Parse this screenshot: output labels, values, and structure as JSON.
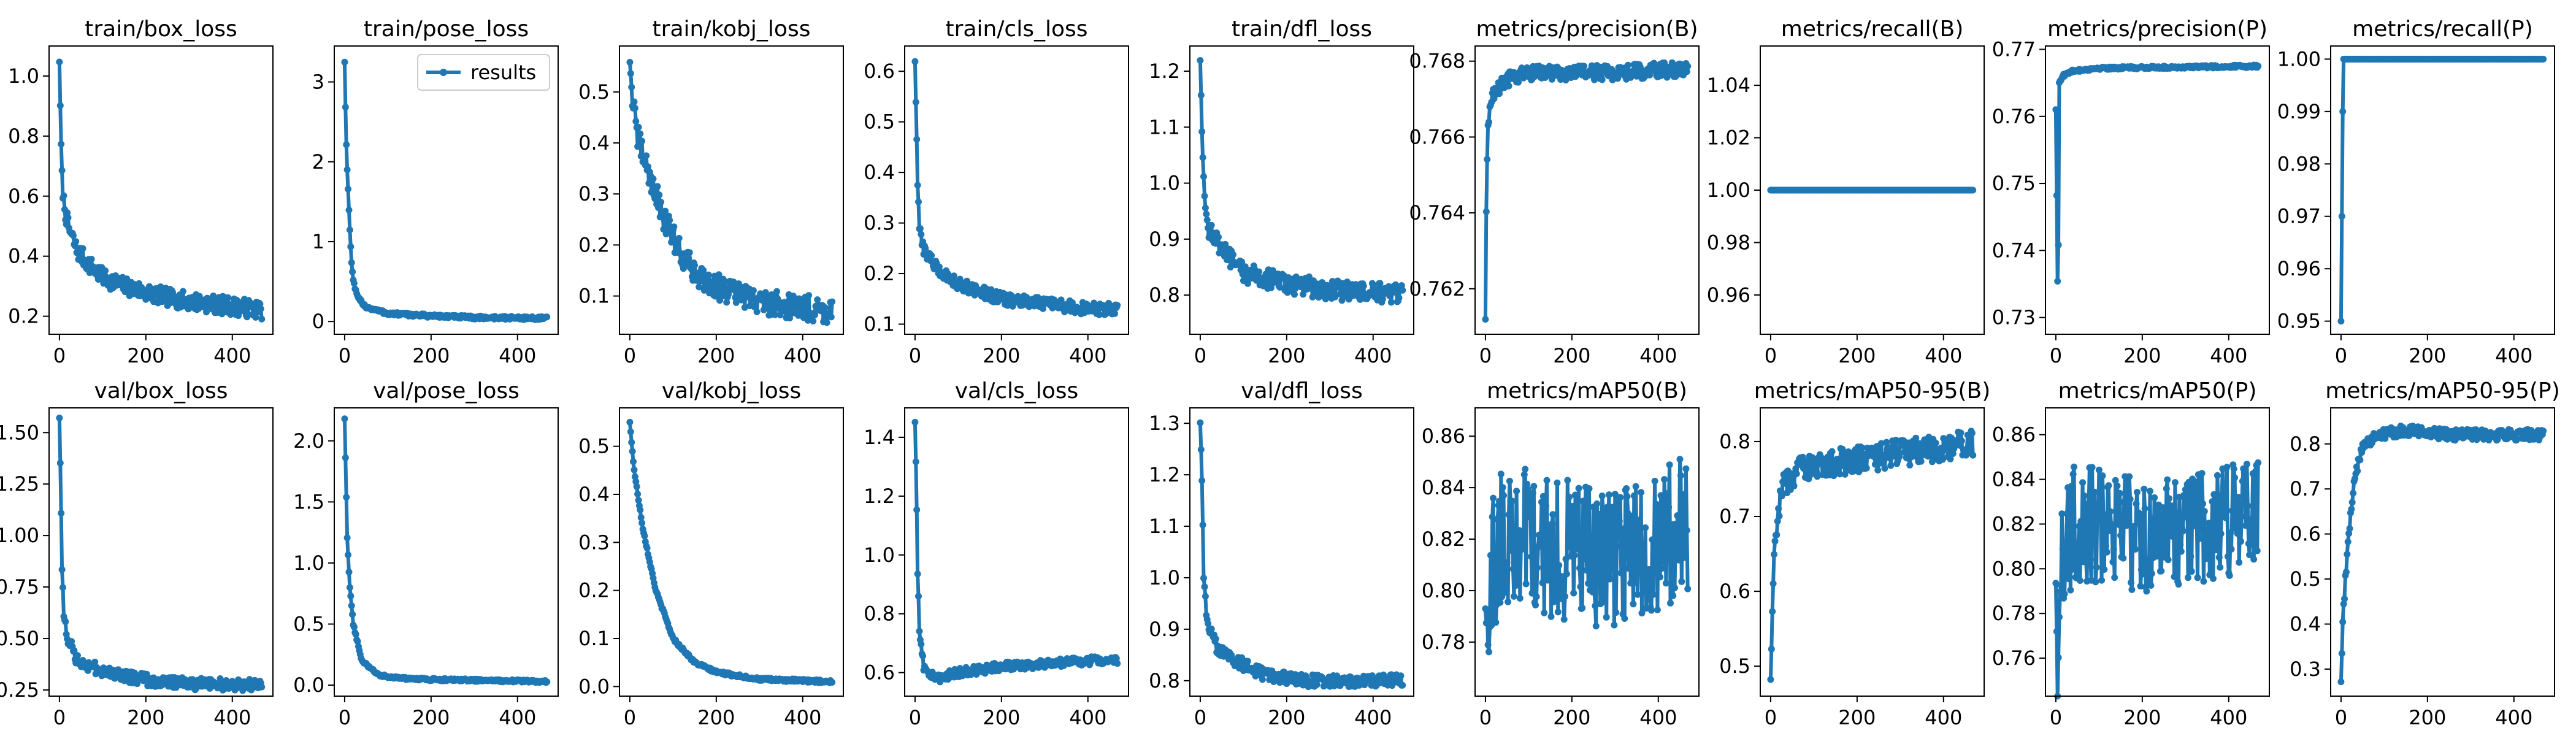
{
  "chart_data": [
    {
      "type": "line",
      "title": "train/box_loss",
      "xticks": [
        "0",
        "200",
        "400"
      ],
      "xlim": [
        -24,
        494
      ],
      "yticks": [
        "0.2",
        "0.4",
        "0.6",
        "0.8",
        "1.0"
      ],
      "ylim": [
        0.14,
        1.1
      ],
      "series": [
        {
          "name": "results",
          "kp": [
            [
              0,
              1.05
            ],
            [
              3,
              0.82
            ],
            [
              6,
              0.66
            ],
            [
              10,
              0.58
            ],
            [
              20,
              0.5
            ],
            [
              40,
              0.42
            ],
            [
              70,
              0.37
            ],
            [
              100,
              0.33
            ],
            [
              150,
              0.3
            ],
            [
              200,
              0.28
            ],
            [
              260,
              0.26
            ],
            [
              300,
              0.25
            ],
            [
              360,
              0.24
            ],
            [
              420,
              0.23
            ],
            [
              470,
              0.22
            ]
          ],
          "noise": 0.03
        }
      ]
    },
    {
      "type": "line",
      "title": "train/pose_loss",
      "xticks": [
        "0",
        "200",
        "400"
      ],
      "xlim": [
        -24,
        494
      ],
      "yticks": [
        "0",
        "1",
        "2",
        "3"
      ],
      "ylim": [
        -0.16,
        3.45
      ],
      "legend": {
        "label": "results",
        "position": "upper right"
      },
      "series": [
        {
          "name": "results",
          "kp": [
            [
              0,
              3.25
            ],
            [
              3,
              2.4
            ],
            [
              6,
              1.9
            ],
            [
              10,
              1.4
            ],
            [
              15,
              0.8
            ],
            [
              20,
              0.5
            ],
            [
              30,
              0.3
            ],
            [
              50,
              0.18
            ],
            [
              100,
              0.1
            ],
            [
              200,
              0.07
            ],
            [
              300,
              0.05
            ],
            [
              470,
              0.04
            ]
          ],
          "noise": 0.02
        }
      ]
    },
    {
      "type": "line",
      "title": "train/kobj_loss",
      "xticks": [
        "0",
        "200",
        "400"
      ],
      "xlim": [
        -24,
        494
      ],
      "yticks": [
        "0.1",
        "0.2",
        "0.3",
        "0.4",
        "0.5"
      ],
      "ylim": [
        0.025,
        0.59
      ],
      "series": [
        {
          "name": "results",
          "kp": [
            [
              0,
              0.56
            ],
            [
              5,
              0.5
            ],
            [
              15,
              0.42
            ],
            [
              40,
              0.35
            ],
            [
              80,
              0.25
            ],
            [
              120,
              0.18
            ],
            [
              160,
              0.14
            ],
            [
              220,
              0.11
            ],
            [
              300,
              0.09
            ],
            [
              380,
              0.08
            ],
            [
              470,
              0.07
            ]
          ],
          "noise": 0.025
        }
      ]
    },
    {
      "type": "line",
      "title": "train/cls_loss",
      "xticks": [
        "0",
        "200",
        "400"
      ],
      "xlim": [
        -24,
        494
      ],
      "yticks": [
        "0.1",
        "0.2",
        "0.3",
        "0.4",
        "0.5",
        "0.6"
      ],
      "ylim": [
        0.08,
        0.65
      ],
      "series": [
        {
          "name": "results",
          "kp": [
            [
              0,
              0.62
            ],
            [
              3,
              0.5
            ],
            [
              6,
              0.37
            ],
            [
              10,
              0.29
            ],
            [
              20,
              0.25
            ],
            [
              50,
              0.21
            ],
            [
              100,
              0.18
            ],
            [
              200,
              0.15
            ],
            [
              300,
              0.14
            ],
            [
              400,
              0.13
            ],
            [
              470,
              0.13
            ]
          ],
          "noise": 0.012
        }
      ]
    },
    {
      "type": "line",
      "title": "train/dfl_loss",
      "xticks": [
        "0",
        "200",
        "400"
      ],
      "xlim": [
        -24,
        494
      ],
      "yticks": [
        "0.8",
        "0.9",
        "1.0",
        "1.1",
        "1.2"
      ],
      "ylim": [
        0.73,
        1.245
      ],
      "series": [
        {
          "name": "results",
          "kp": [
            [
              0,
              1.22
            ],
            [
              4,
              1.1
            ],
            [
              10,
              0.96
            ],
            [
              20,
              0.92
            ],
            [
              50,
              0.88
            ],
            [
              100,
              0.84
            ],
            [
              200,
              0.82
            ],
            [
              300,
              0.81
            ],
            [
              470,
              0.8
            ]
          ],
          "noise": 0.018
        }
      ]
    },
    {
      "type": "line",
      "title": "metrics/precision(B)",
      "xticks": [
        "0",
        "200",
        "400"
      ],
      "xlim": [
        -24,
        494
      ],
      "yticks": [
        "0.762",
        "0.764",
        "0.766",
        "0.768"
      ],
      "ylim": [
        0.7608,
        0.7684
      ],
      "series": [
        {
          "name": "results",
          "kp": [
            [
              0,
              0.7612
            ],
            [
              2,
              0.764
            ],
            [
              5,
              0.766
            ],
            [
              10,
              0.7668
            ],
            [
              20,
              0.7672
            ],
            [
              60,
              0.7676
            ],
            [
              100,
              0.7677
            ],
            [
              200,
              0.7677
            ],
            [
              300,
              0.7677
            ],
            [
              470,
              0.7678
            ]
          ],
          "noise": 0.0002
        }
      ]
    },
    {
      "type": "line",
      "title": "metrics/recall(B)",
      "xticks": [
        "0",
        "200",
        "400"
      ],
      "xlim": [
        -24,
        494
      ],
      "yticks": [
        "0.96",
        "0.98",
        "1.00",
        "1.02",
        "1.04"
      ],
      "ylim": [
        0.945,
        1.055
      ],
      "series": [
        {
          "name": "results",
          "kp": [
            [
              0,
              1.0
            ],
            [
              470,
              1.0
            ]
          ],
          "noise": 0
        }
      ]
    },
    {
      "type": "line",
      "title": "metrics/precision(P)",
      "xticks": [
        "0",
        "200",
        "400"
      ],
      "xlim": [
        -24,
        494
      ],
      "yticks": [
        "0.73",
        "0.74",
        "0.75",
        "0.76",
        "0.77"
      ],
      "ylim": [
        0.7275,
        0.7705
      ],
      "series": [
        {
          "name": "results",
          "kp": [
            [
              0,
              0.761
            ],
            [
              5,
              0.729
            ],
            [
              8,
              0.765
            ],
            [
              15,
              0.766
            ],
            [
              40,
              0.7668
            ],
            [
              100,
              0.7672
            ],
            [
              470,
              0.7675
            ]
          ],
          "noise": 0.0002
        }
      ]
    },
    {
      "type": "line",
      "title": "metrics/recall(P)",
      "xticks": [
        "0",
        "200",
        "400"
      ],
      "xlim": [
        -24,
        494
      ],
      "yticks": [
        "0.95",
        "0.96",
        "0.97",
        "0.98",
        "0.99",
        "1.00"
      ],
      "ylim": [
        0.9475,
        1.0025
      ],
      "series": [
        {
          "name": "results",
          "kp": [
            [
              0,
              0.95
            ],
            [
              5,
              1.0
            ],
            [
              470,
              1.0
            ]
          ],
          "noise": 0
        }
      ]
    },
    {
      "type": "line",
      "title": "val/box_loss",
      "xticks": [
        "0",
        "200",
        "400"
      ],
      "xlim": [
        -24,
        494
      ],
      "yticks": [
        "0.25",
        "0.50",
        "0.75",
        "1.00",
        "1.25",
        "1.50"
      ],
      "ylim": [
        0.22,
        1.62
      ],
      "series": [
        {
          "name": "results",
          "kp": [
            [
              0,
              1.57
            ],
            [
              3,
              1.25
            ],
            [
              6,
              0.85
            ],
            [
              10,
              0.6
            ],
            [
              20,
              0.5
            ],
            [
              40,
              0.4
            ],
            [
              100,
              0.34
            ],
            [
              200,
              0.3
            ],
            [
              300,
              0.28
            ],
            [
              470,
              0.27
            ]
          ],
          "noise": 0.03
        }
      ]
    },
    {
      "type": "line",
      "title": "val/pose_loss",
      "xticks": [
        "0",
        "200",
        "400"
      ],
      "xlim": [
        -24,
        494
      ],
      "yticks": [
        "0.0",
        "0.5",
        "1.0",
        "1.5",
        "2.0"
      ],
      "ylim": [
        -0.09,
        2.27
      ],
      "series": [
        {
          "name": "results",
          "kp": [
            [
              0,
              2.18
            ],
            [
              3,
              1.7
            ],
            [
              6,
              1.2
            ],
            [
              12,
              0.8
            ],
            [
              20,
              0.5
            ],
            [
              40,
              0.2
            ],
            [
              80,
              0.08
            ],
            [
              150,
              0.05
            ],
            [
              300,
              0.04
            ],
            [
              470,
              0.03
            ]
          ],
          "noise": 0.01
        }
      ]
    },
    {
      "type": "line",
      "title": "val/kobj_loss",
      "xticks": [
        "0",
        "200",
        "400"
      ],
      "xlim": [
        -24,
        494
      ],
      "yticks": [
        "0.0",
        "0.1",
        "0.2",
        "0.3",
        "0.4",
        "0.5"
      ],
      "ylim": [
        -0.02,
        0.58
      ],
      "series": [
        {
          "name": "results",
          "kp": [
            [
              0,
              0.55
            ],
            [
              10,
              0.45
            ],
            [
              30,
              0.33
            ],
            [
              60,
              0.2
            ],
            [
              100,
              0.1
            ],
            [
              150,
              0.05
            ],
            [
              200,
              0.03
            ],
            [
              300,
              0.015
            ],
            [
              470,
              0.01
            ]
          ],
          "noise": 0.003
        }
      ]
    },
    {
      "type": "line",
      "title": "val/cls_loss",
      "xticks": [
        "0",
        "200",
        "400"
      ],
      "xlim": [
        -24,
        494
      ],
      "yticks": [
        "0.6",
        "0.8",
        "1.0",
        "1.2",
        "1.4"
      ],
      "ylim": [
        0.52,
        1.5
      ],
      "series": [
        {
          "name": "results",
          "kp": [
            [
              0,
              1.45
            ],
            [
              3,
              1.25
            ],
            [
              6,
              0.95
            ],
            [
              10,
              0.75
            ],
            [
              20,
              0.62
            ],
            [
              50,
              0.58
            ],
            [
              100,
              0.6
            ],
            [
              200,
              0.62
            ],
            [
              300,
              0.63
            ],
            [
              400,
              0.64
            ],
            [
              470,
              0.64
            ]
          ],
          "noise": 0.015
        }
      ]
    },
    {
      "type": "line",
      "title": "val/dfl_loss",
      "xticks": [
        "0",
        "200",
        "400"
      ],
      "xlim": [
        -24,
        494
      ],
      "yticks": [
        "0.8",
        "0.9",
        "1.0",
        "1.1",
        "1.2",
        "1.3"
      ],
      "ylim": [
        0.77,
        1.33
      ],
      "series": [
        {
          "name": "results",
          "kp": [
            [
              0,
              1.3
            ],
            [
              4,
              1.2
            ],
            [
              8,
              1.0
            ],
            [
              15,
              0.92
            ],
            [
              40,
              0.86
            ],
            [
              80,
              0.84
            ],
            [
              150,
              0.81
            ],
            [
              250,
              0.8
            ],
            [
              470,
              0.8
            ]
          ],
          "noise": 0.012
        }
      ]
    },
    {
      "type": "line",
      "title": "metrics/mAP50(B)",
      "xticks": [
        "0",
        "200",
        "400"
      ],
      "xlim": [
        -24,
        494
      ],
      "yticks": [
        "0.78",
        "0.80",
        "0.82",
        "0.84",
        "0.86"
      ],
      "ylim": [
        0.759,
        0.871
      ],
      "series": [
        {
          "name": "results",
          "kp": [
            [
              0,
              0.79
            ],
            [
              30,
              0.82
            ],
            [
              100,
              0.82
            ],
            [
              200,
              0.815
            ],
            [
              300,
              0.81
            ],
            [
              400,
              0.82
            ],
            [
              470,
              0.825
            ]
          ],
          "noise": 0.028
        }
      ]
    },
    {
      "type": "line",
      "title": "metrics/mAP50-95(B)",
      "xticks": [
        "0",
        "200",
        "400"
      ],
      "xlim": [
        -24,
        494
      ],
      "yticks": [
        "0.5",
        "0.6",
        "0.7",
        "0.8"
      ],
      "ylim": [
        0.46,
        0.845
      ],
      "series": [
        {
          "name": "results",
          "kp": [
            [
              0,
              0.48
            ],
            [
              4,
              0.56
            ],
            [
              8,
              0.64
            ],
            [
              15,
              0.7
            ],
            [
              30,
              0.74
            ],
            [
              60,
              0.76
            ],
            [
              100,
              0.77
            ],
            [
              200,
              0.775
            ],
            [
              300,
              0.785
            ],
            [
              400,
              0.79
            ],
            [
              470,
              0.8
            ]
          ],
          "noise": 0.018
        }
      ]
    },
    {
      "type": "line",
      "title": "metrics/mAP50(P)",
      "xticks": [
        "0",
        "200",
        "400"
      ],
      "xlim": [
        -24,
        494
      ],
      "yticks": [
        "0.76",
        "0.78",
        "0.80",
        "0.82",
        "0.84",
        "0.86"
      ],
      "ylim": [
        0.743,
        0.872
      ],
      "series": [
        {
          "name": "results",
          "kp": [
            [
              0,
              0.79
            ],
            [
              4,
              0.75
            ],
            [
              10,
              0.8
            ],
            [
              40,
              0.82
            ],
            [
              100,
              0.82
            ],
            [
              200,
              0.815
            ],
            [
              300,
              0.815
            ],
            [
              400,
              0.82
            ],
            [
              470,
              0.825
            ]
          ],
          "noise": 0.026
        }
      ]
    },
    {
      "type": "line",
      "title": "metrics/mAP50-95(P)",
      "xticks": [
        "0",
        "200",
        "400"
      ],
      "xlim": [
        -24,
        494
      ],
      "yticks": [
        "0.3",
        "0.4",
        "0.5",
        "0.6",
        "0.7",
        "0.8"
      ],
      "ylim": [
        0.24,
        0.88
      ],
      "series": [
        {
          "name": "results",
          "kp": [
            [
              0,
              0.27
            ],
            [
              4,
              0.4
            ],
            [
              10,
              0.5
            ],
            [
              20,
              0.62
            ],
            [
              30,
              0.72
            ],
            [
              50,
              0.79
            ],
            [
              80,
              0.82
            ],
            [
              150,
              0.83
            ],
            [
              250,
              0.82
            ],
            [
              350,
              0.82
            ],
            [
              470,
              0.82
            ]
          ],
          "noise": 0.012
        }
      ]
    }
  ]
}
